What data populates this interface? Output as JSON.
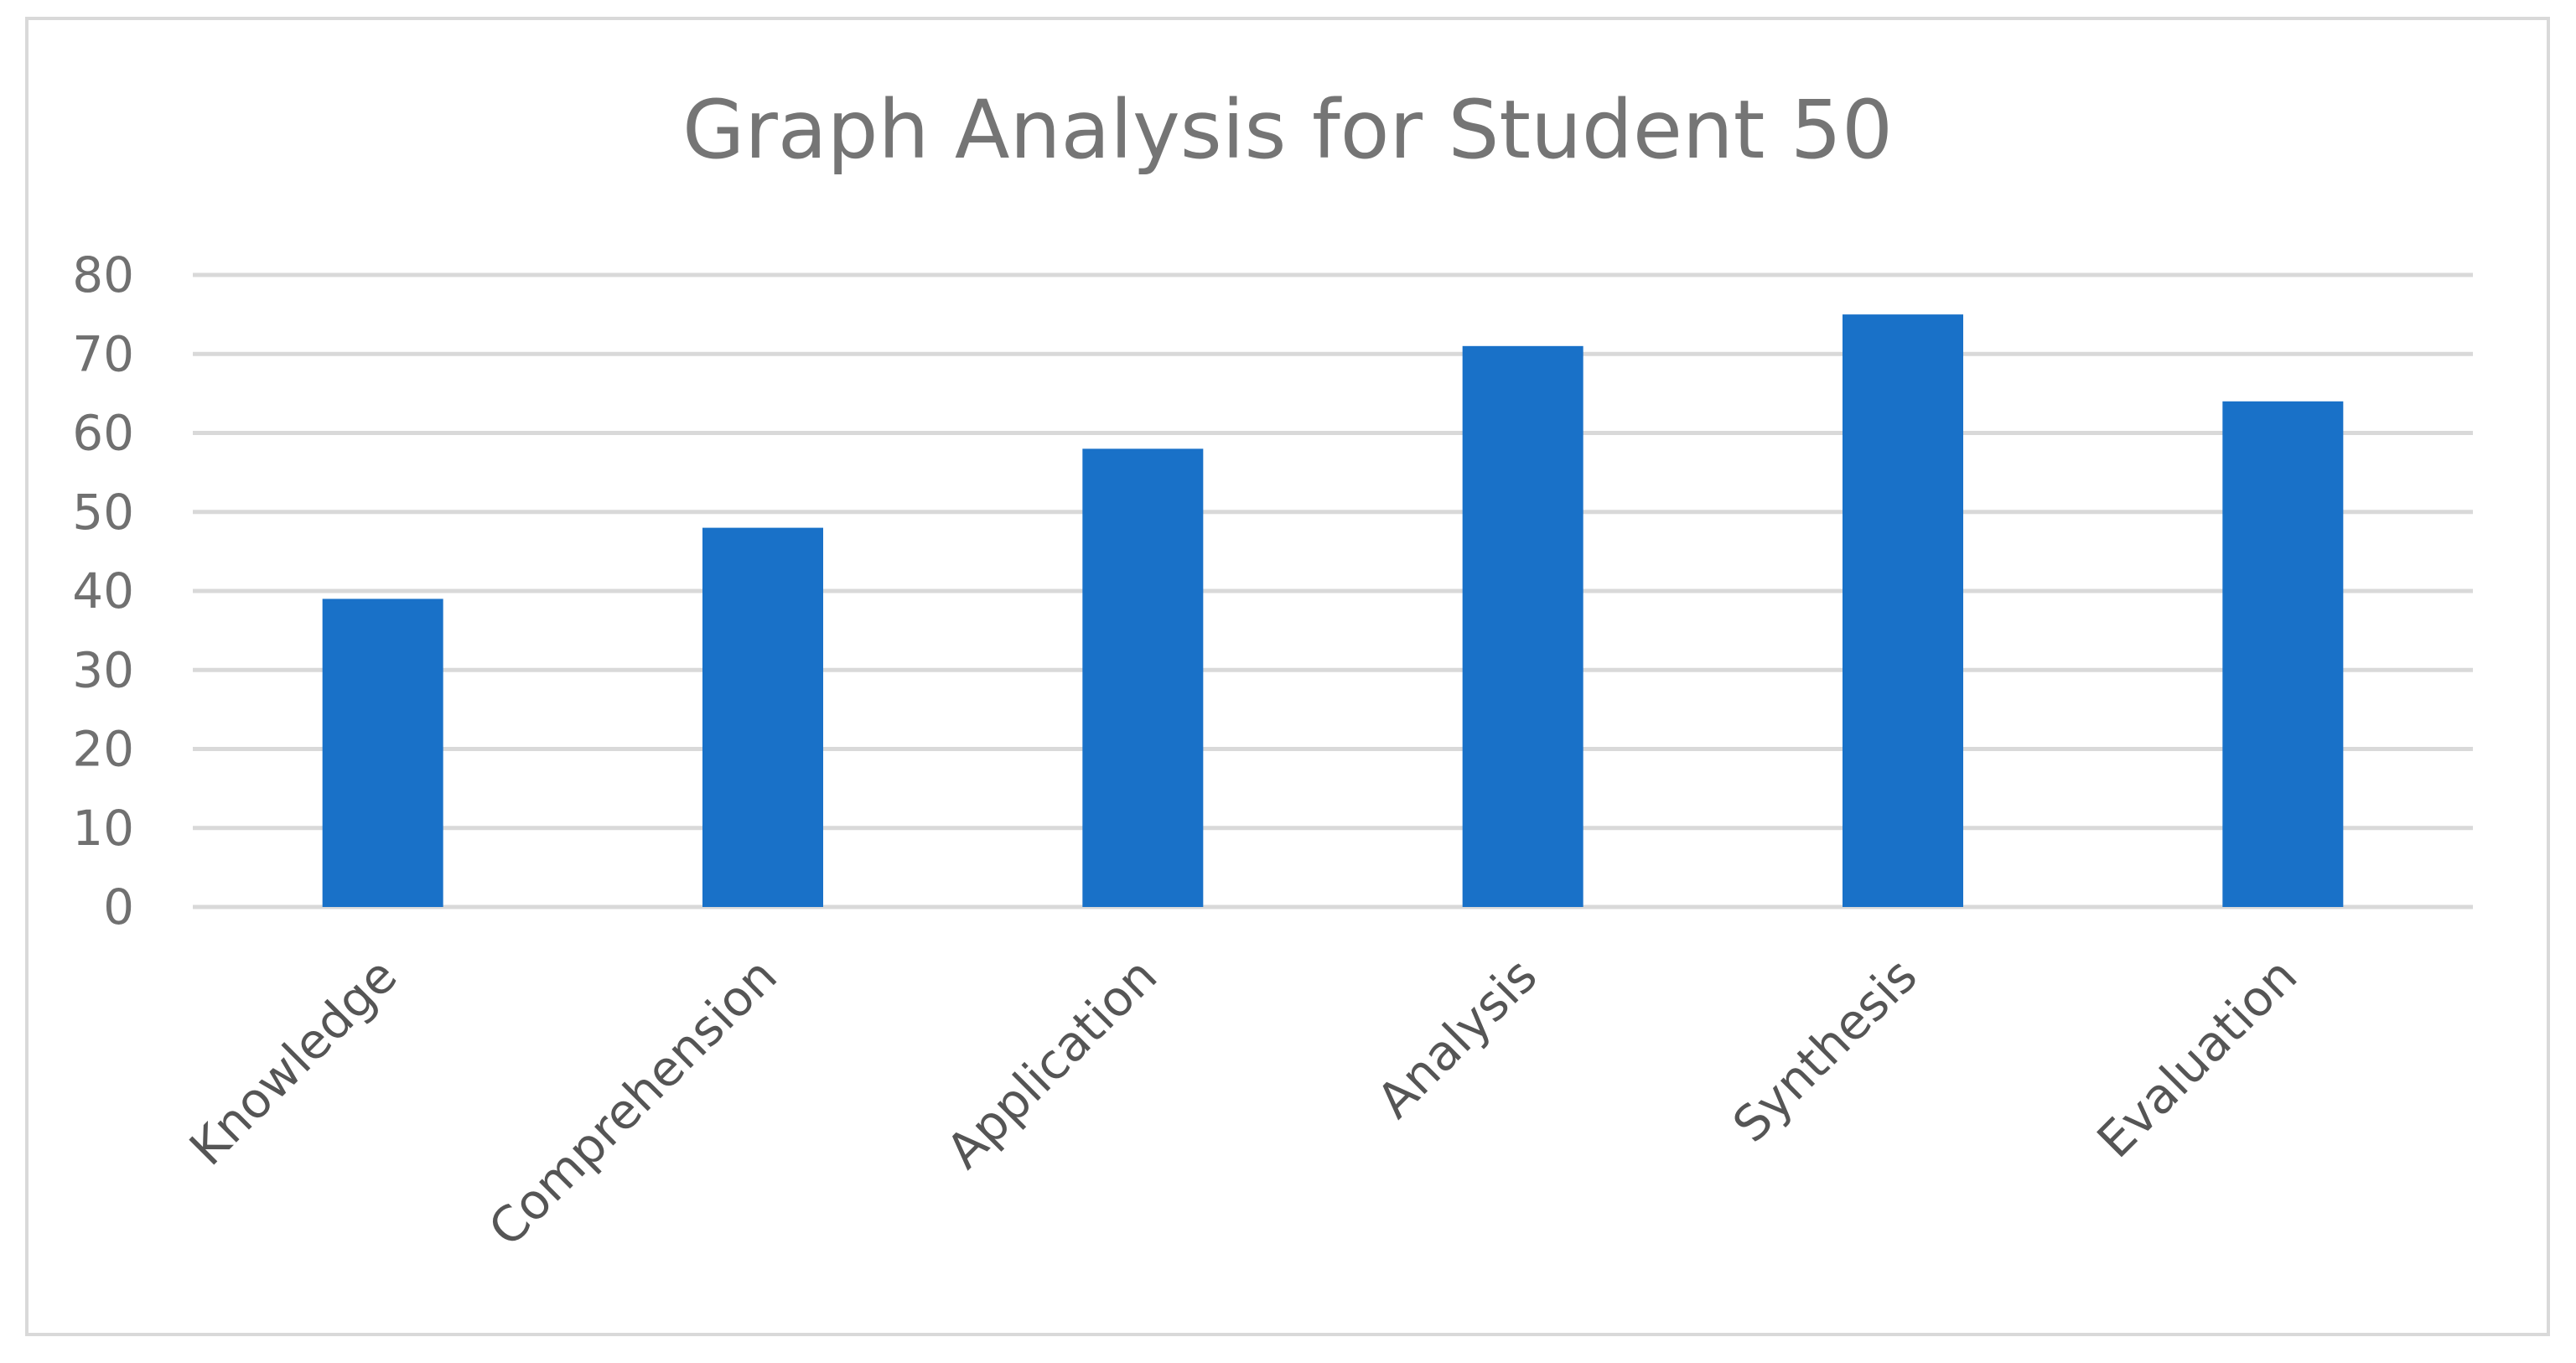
{
  "chart_data": {
    "type": "bar",
    "title": "Graph Analysis for Student 50",
    "xlabel": "",
    "ylabel": "",
    "categories": [
      "Knowledge",
      "Comprehension",
      "Application",
      "Analysis",
      "Synthesis",
      "Evaluation"
    ],
    "values": [
      39,
      48,
      58,
      71,
      75,
      64
    ],
    "ylim": [
      0,
      80
    ],
    "yticks": [
      "0",
      "10",
      "20",
      "30",
      "40",
      "50",
      "60",
      "70",
      "80"
    ],
    "grid": true,
    "legend": "none",
    "bar_color": "#1971c8",
    "grid_color": "#d9d9d9"
  }
}
